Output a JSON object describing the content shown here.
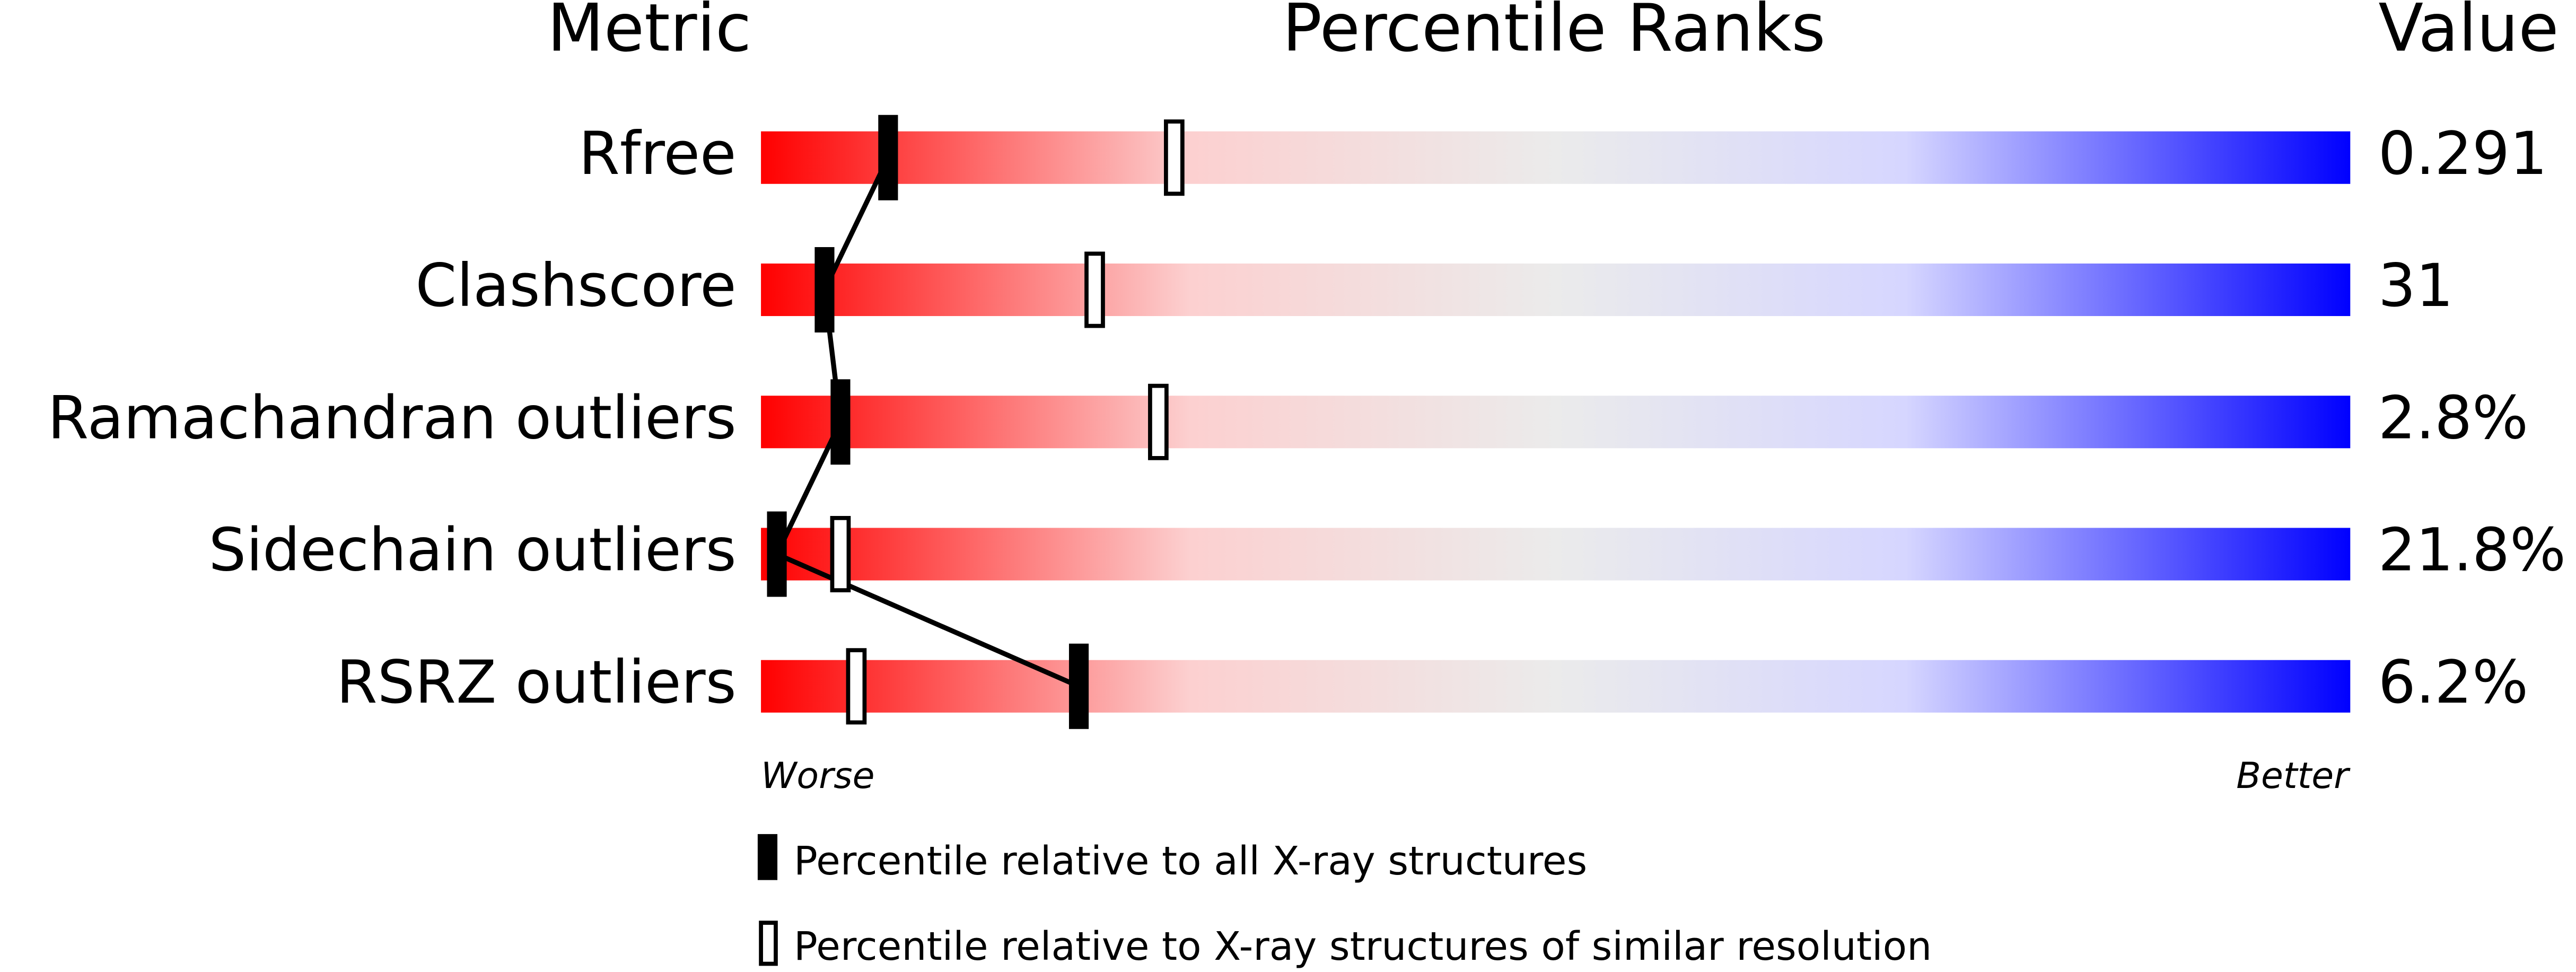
{
  "chart_data": {
    "type": "percentile-slider",
    "column_headers": [
      "Metric",
      "Percentile Ranks",
      "Value"
    ],
    "categories": [
      "Rfree",
      "Clashscore",
      "Ramachandran outliers",
      "Sidechain outliers",
      "RSRZ outliers"
    ],
    "metric_values": [
      "0.291",
      "31",
      "2.8%",
      "21.8%",
      "6.2%"
    ],
    "series": [
      {
        "name": "Percentile relative to all X-ray structures",
        "color": "#000000",
        "values": [
          8,
          4,
          5,
          1,
          20
        ]
      },
      {
        "name": "Percentile relative to X-ray structures of similar resolution",
        "color": "#000000",
        "values": [
          26,
          21,
          25,
          5,
          6
        ]
      }
    ],
    "xlim": [
      0,
      100
    ],
    "axis_ends": [
      "Worse",
      "Better"
    ]
  }
}
